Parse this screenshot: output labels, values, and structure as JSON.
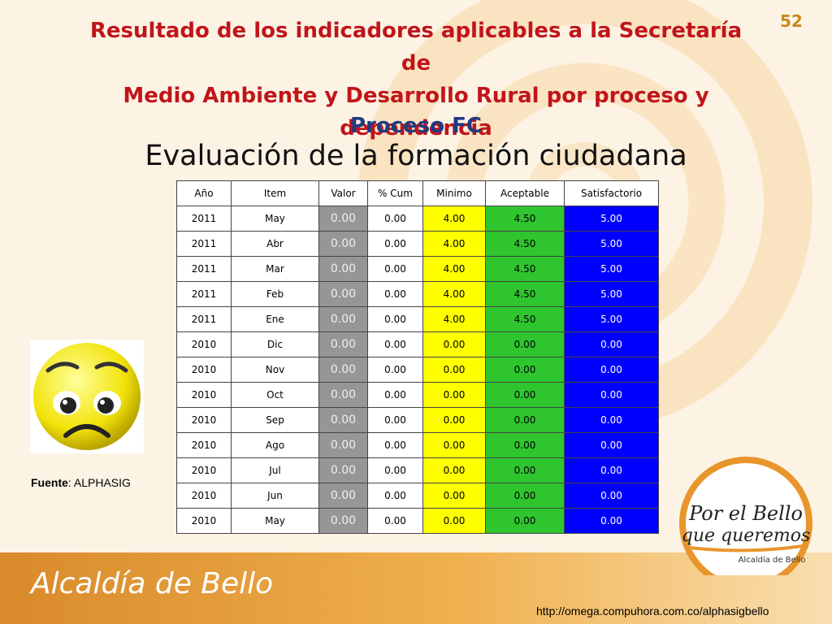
{
  "slide_number": "52",
  "title_lines": [
    "Resultado de los indicadores aplicables a la Secretaría de",
    "Medio Ambiente y Desarrollo Rural  por proceso y",
    "dependencia"
  ],
  "subtitle": "Proceso FC",
  "evaluation_title": "Evaluación de la formación ciudadana",
  "table": {
    "headers": [
      "Año",
      "Item",
      "Valor",
      "% Cum",
      "Minimo",
      "Aceptable",
      "Satisfactorio"
    ],
    "rows": [
      [
        "2011",
        "May",
        "0.00",
        "0.00",
        "4.00",
        "4.50",
        "5.00"
      ],
      [
        "2011",
        "Abr",
        "0.00",
        "0.00",
        "4.00",
        "4.50",
        "5.00"
      ],
      [
        "2011",
        "Mar",
        "0.00",
        "0.00",
        "4.00",
        "4.50",
        "5.00"
      ],
      [
        "2011",
        "Feb",
        "0.00",
        "0.00",
        "4.00",
        "4.50",
        "5.00"
      ],
      [
        "2011",
        "Ene",
        "0.00",
        "0.00",
        "4.00",
        "4.50",
        "5.00"
      ],
      [
        "2010",
        "Dic",
        "0.00",
        "0.00",
        "0.00",
        "0.00",
        "0.00"
      ],
      [
        "2010",
        "Nov",
        "0.00",
        "0.00",
        "0.00",
        "0.00",
        "0.00"
      ],
      [
        "2010",
        "Oct",
        "0.00",
        "0.00",
        "0.00",
        "0.00",
        "0.00"
      ],
      [
        "2010",
        "Sep",
        "0.00",
        "0.00",
        "0.00",
        "0.00",
        "0.00"
      ],
      [
        "2010",
        "Ago",
        "0.00",
        "0.00",
        "0.00",
        "0.00",
        "0.00"
      ],
      [
        "2010",
        "Jul",
        "0.00",
        "0.00",
        "0.00",
        "0.00",
        "0.00"
      ],
      [
        "2010",
        "Jun",
        "0.00",
        "0.00",
        "0.00",
        "0.00",
        "0.00"
      ],
      [
        "2010",
        "May",
        "0.00",
        "0.00",
        "0.00",
        "0.00",
        "0.00"
      ]
    ]
  },
  "source": {
    "label": "Fuente",
    "value": ": ALPHASIG"
  },
  "footer_brand": "Alcaldía de Bello",
  "logo": {
    "line1": "Por el Bello",
    "line2": "que queremos",
    "line3": "Alcaldía de Bello"
  },
  "url": "http://omega.compuhora.com.co/alphasigbello",
  "colors": {
    "title": "#c0151a",
    "subtitle": "#1f3b82",
    "minimo": "#ffff00",
    "aceptable": "#2fc52f",
    "satisfactorio": "#0000ff",
    "valor": "#969696"
  },
  "icons": {
    "face": "sad-face-icon"
  }
}
